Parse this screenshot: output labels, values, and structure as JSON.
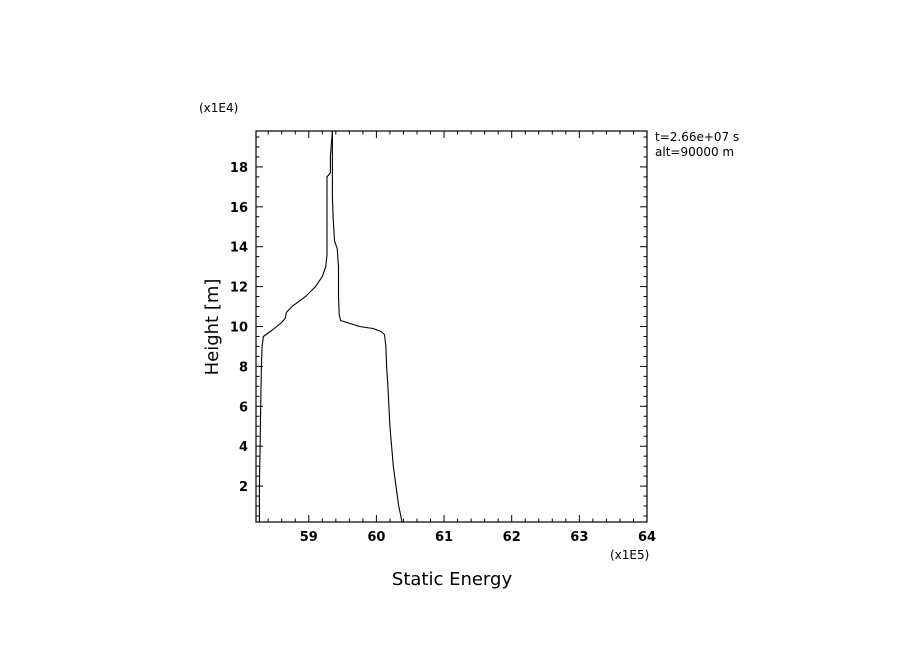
{
  "chart_data": {
    "type": "line",
    "xlabel": "Static Energy",
    "ylabel": "Height [m]",
    "x_multiplier_label": "(x1E5)",
    "y_multiplier_label": "(x1E4)",
    "annotations": [
      "t=2.66e+07 s",
      "alt=90000 m"
    ],
    "xlim": [
      58.22,
      64
    ],
    "ylim": [
      0.2,
      19.8
    ],
    "x_ticks": [
      59,
      60,
      61,
      62,
      63,
      64
    ],
    "y_ticks": [
      2,
      4,
      6,
      8,
      10,
      12,
      14,
      16,
      18
    ],
    "grid": false,
    "series": [
      {
        "color": "#000000",
        "points": [
          [
            60.38,
            0.2
          ],
          [
            60.33,
            1.0
          ],
          [
            60.29,
            2.0
          ],
          [
            60.25,
            3.0
          ],
          [
            60.2,
            5.0
          ],
          [
            60.17,
            7.0
          ],
          [
            60.15,
            8.0
          ],
          [
            60.14,
            9.0
          ],
          [
            60.12,
            9.6
          ],
          [
            60.07,
            9.75
          ],
          [
            59.95,
            9.9
          ],
          [
            59.75,
            10.0
          ],
          [
            59.47,
            10.3
          ],
          [
            59.45,
            10.6
          ],
          [
            59.44,
            11.5
          ],
          [
            59.44,
            13.0
          ],
          [
            59.42,
            13.9
          ],
          [
            59.38,
            14.3
          ],
          [
            59.36,
            15.5
          ],
          [
            59.35,
            16.5
          ],
          [
            59.35,
            19.8
          ]
        ]
      },
      {
        "color": "#000000",
        "points": [
          [
            58.27,
            0.2
          ],
          [
            58.27,
            2.0
          ],
          [
            58.28,
            4.0
          ],
          [
            58.29,
            6.0
          ],
          [
            58.3,
            8.0
          ],
          [
            58.31,
            9.0
          ],
          [
            58.33,
            9.5
          ],
          [
            58.45,
            9.8
          ],
          [
            58.6,
            10.2
          ],
          [
            58.65,
            10.4
          ],
          [
            58.67,
            10.7
          ],
          [
            58.75,
            11.0
          ],
          [
            58.95,
            11.5
          ],
          [
            59.1,
            12.0
          ],
          [
            59.2,
            12.5
          ],
          [
            59.25,
            13.0
          ],
          [
            59.27,
            13.6
          ],
          [
            59.27,
            14.3
          ],
          [
            59.27,
            15.5
          ],
          [
            59.27,
            17.0
          ],
          [
            59.27,
            17.5
          ],
          [
            59.32,
            17.7
          ],
          [
            59.32,
            18.5
          ],
          [
            59.33,
            19.0
          ],
          [
            59.35,
            19.8
          ]
        ]
      }
    ]
  }
}
